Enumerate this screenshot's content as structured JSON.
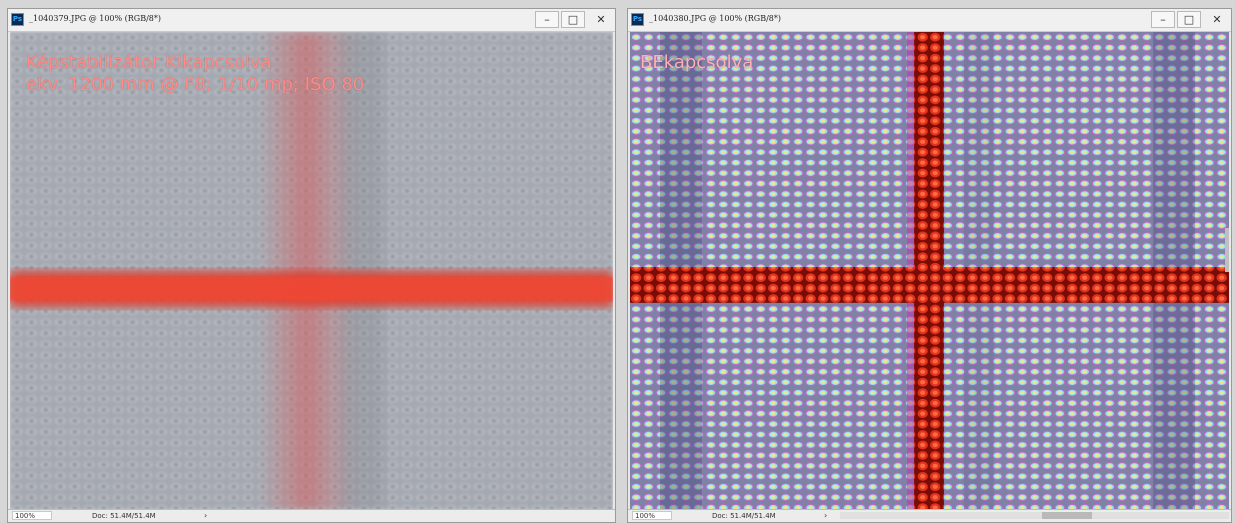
{
  "left_window": {
    "title": "_1040379.JPG @ 100% (RGB/8*)",
    "ps_icon_label": "Ps",
    "overlay_line1": "Képstabilizátor KIkapcsolva",
    "overlay_line2": "ekv. 1200 mm @ F8; 1/10 mp; ISO 80",
    "zoom": "100%",
    "doc_info": "Doc: 51.4M/51.4M",
    "status_arrow": "›"
  },
  "right_window": {
    "title": "_1040380.JPG @ 100% (RGB/8*)",
    "ps_icon_label": "Ps",
    "overlay_line1": "BEkapcsolva",
    "zoom": "100%",
    "doc_info": "Doc: 51.4M/51.4M",
    "status_arrow": "›"
  },
  "window_controls": {
    "minimize": "–",
    "maximize": "□",
    "close": "✕"
  },
  "colors": {
    "overlay_text_left": "#ff8a86",
    "overlay_text_right": "#ffb1b1",
    "red_line": "#e03020",
    "red_line_sharp": "#c01808",
    "grey_grid": "#a7aab2",
    "grid_cyan": "#8fe0ee",
    "grid_magenta": "#c060c0",
    "grid_yellow": "#e8e48a"
  }
}
